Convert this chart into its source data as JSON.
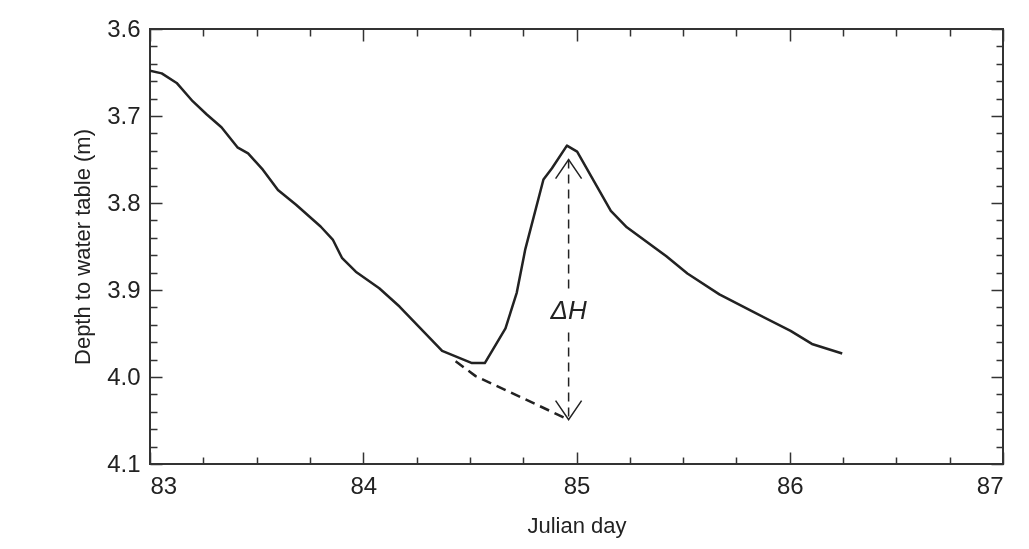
{
  "chart_data": {
    "type": "line",
    "xlabel": "Julian day",
    "ylabel": "Depth to water table (m)",
    "xlim": [
      83,
      87
    ],
    "ylim": [
      4.1,
      3.6
    ],
    "xticks": [
      83,
      {
        "value": 83.25,
        "label": null
      },
      {
        "value": 83.5,
        "label": null
      },
      {
        "value": 83.75,
        "label": null
      },
      84,
      {
        "value": 84.25,
        "label": null
      },
      {
        "value": 84.5,
        "label": null
      },
      {
        "value": 84.75,
        "label": null
      },
      85,
      {
        "value": 85.25,
        "label": null
      },
      {
        "value": 85.5,
        "label": null
      },
      {
        "value": 85.75,
        "label": null
      },
      86,
      {
        "value": 86.25,
        "label": null
      },
      {
        "value": 86.5,
        "label": null
      },
      {
        "value": 86.75,
        "label": null
      },
      87
    ],
    "yticks": [
      3.6,
      {
        "value": 3.62,
        "label": null
      },
      {
        "value": 3.64,
        "label": null
      },
      {
        "value": 3.66,
        "label": null
      },
      {
        "value": 3.68,
        "label": null
      },
      3.7,
      {
        "value": 3.72,
        "label": null
      },
      {
        "value": 3.74,
        "label": null
      },
      {
        "value": 3.76,
        "label": null
      },
      {
        "value": 3.78,
        "label": null
      },
      3.8,
      {
        "value": 3.82,
        "label": null
      },
      {
        "value": 3.84,
        "label": null
      },
      {
        "value": 3.86,
        "label": null
      },
      {
        "value": 3.88,
        "label": null
      },
      3.9,
      {
        "value": 3.92,
        "label": null
      },
      {
        "value": 3.94,
        "label": null
      },
      {
        "value": 3.96,
        "label": null
      },
      {
        "value": 3.98,
        "label": null
      },
      {
        "value": 4,
        "label": "4.0"
      },
      {
        "value": 4.02,
        "label": null
      },
      {
        "value": 4.04,
        "label": null
      },
      {
        "value": 4.06,
        "label": null
      },
      {
        "value": 4.08,
        "label": null
      },
      4.1
    ],
    "grid": false,
    "series": [
      {
        "color": "#222222",
        "line_style": "solid",
        "x": [
          83,
          83.055,
          83.125,
          83.2,
          83.265,
          83.335,
          83.41,
          83.46,
          83.53,
          83.6,
          83.685,
          83.8,
          83.857,
          83.9,
          83.965,
          84.075,
          84.17,
          84.37,
          84.51,
          84.57,
          84.667,
          84.72,
          84.76,
          84.845,
          84.885,
          84.955,
          85.003,
          85.161,
          85.236,
          85.42,
          85.52,
          85.67,
          85.82,
          86.004,
          86.104,
          86.246
        ],
        "values": [
          3.648,
          3.651,
          3.662,
          3.683,
          3.698,
          3.713,
          3.736,
          3.743,
          3.762,
          3.785,
          3.802,
          3.827,
          3.842,
          3.863,
          3.879,
          3.898,
          3.919,
          3.97,
          3.984,
          3.984,
          3.944,
          3.903,
          3.853,
          3.773,
          3.76,
          3.734,
          3.741,
          3.809,
          3.828,
          3.861,
          3.881,
          3.905,
          3.924,
          3.947,
          3.962,
          3.973
        ]
      },
      {
        "color": "#222222",
        "line_style": "dashed",
        "x": [
          84.433,
          84.527,
          84.963
        ],
        "values": [
          3.982,
          3.999,
          4.049
        ]
      }
    ],
    "annotations": [
      {
        "text": "ΔH",
        "x": 84.963,
        "y": 4.049
      }
    ]
  }
}
